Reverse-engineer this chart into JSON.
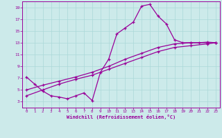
{
  "xlabel": "Windchill (Refroidissement éolien,°C)",
  "xlim": [
    -0.5,
    23.5
  ],
  "ylim": [
    2,
    20
  ],
  "xticks": [
    0,
    1,
    2,
    3,
    4,
    5,
    6,
    7,
    8,
    9,
    10,
    11,
    12,
    13,
    14,
    15,
    16,
    17,
    18,
    19,
    20,
    21,
    22,
    23
  ],
  "yticks": [
    3,
    5,
    7,
    9,
    11,
    13,
    15,
    17,
    19
  ],
  "background_color": "#cceaea",
  "line_color": "#990099",
  "grid_color": "#aad8d8",
  "line1_x": [
    0,
    1,
    2,
    3,
    4,
    5,
    6,
    7,
    8,
    9,
    10,
    11,
    12,
    13,
    14,
    15,
    16,
    17,
    18,
    19,
    20,
    21,
    22,
    23
  ],
  "line1_y": [
    7.2,
    6.0,
    4.8,
    4.0,
    3.8,
    3.5,
    4.0,
    4.5,
    3.2,
    8.0,
    10.2,
    14.5,
    15.5,
    16.5,
    19.2,
    19.5,
    17.5,
    16.2,
    13.5,
    13.0,
    13.0,
    13.0,
    13.1,
    13.0
  ],
  "line2_x": [
    0,
    2,
    4,
    6,
    8,
    10,
    12,
    14,
    16,
    18,
    20,
    22,
    23
  ],
  "line2_y": [
    5.0,
    5.8,
    6.5,
    7.2,
    8.0,
    9.0,
    10.2,
    11.2,
    12.2,
    12.8,
    13.0,
    13.0,
    13.0
  ],
  "line3_x": [
    0,
    2,
    4,
    6,
    8,
    10,
    12,
    14,
    16,
    18,
    20,
    22,
    23
  ],
  "line3_y": [
    4.0,
    5.0,
    6.0,
    6.8,
    7.5,
    8.5,
    9.5,
    10.5,
    11.5,
    12.2,
    12.5,
    12.8,
    13.0
  ]
}
